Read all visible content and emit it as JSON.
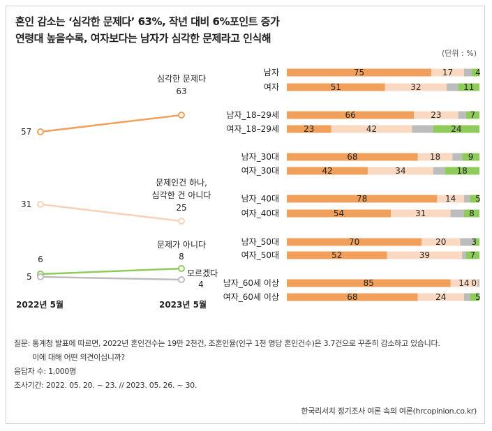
{
  "title_line1": "혼인 감소는 ‘심각한 문제다’ 63%, 작년 대비 6%포인트 증가",
  "title_line2": "연령대 높을수록, 여자보다는 남자가 심각한 문제라고 인식해",
  "unit": "(단위 : %)",
  "chart_data": [
    {
      "type": "line",
      "x": [
        "2022년 5월",
        "2023년 5월"
      ],
      "series": [
        {
          "name": "심각한 문제다",
          "values": [
            57,
            63
          ],
          "color": "#f0a05a"
        },
        {
          "name": "문제인건 하나, 심각한 건 아니다",
          "values": [
            31,
            25
          ],
          "color": "#f7d2b8"
        },
        {
          "name": "문제가 아니다",
          "values": [
            6,
            8
          ],
          "color": "#8fcb5a"
        },
        {
          "name": "모르겠다",
          "values": [
            5,
            4
          ],
          "color": "#bcbcbc"
        }
      ],
      "labels": {
        "serious": "심각한 문제다",
        "not_serious_1": "문제인건 하나,",
        "not_serious_2": "심각한 건 아니다",
        "not_problem": "문제가 아니다",
        "dont_know": "모르겠다"
      }
    },
    {
      "type": "bar",
      "stacked": true,
      "orientation": "horizontal",
      "series_names": [
        "심각한 문제다",
        "문제인건 하나, 심각한 건 아니다",
        "모르겠다",
        "문제가 아니다"
      ],
      "colors": [
        "#f0a05a",
        "#f9d9c2",
        "#bcbcbc",
        "#8fcb5a"
      ],
      "rows": [
        {
          "label": "남자",
          "values": [
            75,
            17,
            4,
            4
          ],
          "labels": [
            "75",
            "17",
            "",
            "4"
          ]
        },
        {
          "label": "여자",
          "values": [
            51,
            32,
            6,
            11
          ],
          "labels": [
            "51",
            "32",
            "",
            "11"
          ]
        },
        {
          "label": "남자_18–29세",
          "values": [
            66,
            23,
            4,
            7
          ],
          "labels": [
            "66",
            "23",
            "",
            "7"
          ]
        },
        {
          "label": "여자_18–29세",
          "values": [
            23,
            42,
            11,
            24
          ],
          "labels": [
            "23",
            "42",
            "",
            "24"
          ]
        },
        {
          "label": "남자_30대",
          "values": [
            68,
            18,
            5,
            9
          ],
          "labels": [
            "68",
            "18",
            "",
            "9"
          ]
        },
        {
          "label": "여자_30대",
          "values": [
            42,
            34,
            6,
            18
          ],
          "labels": [
            "42",
            "34",
            "",
            "18"
          ]
        },
        {
          "label": "남자_40대",
          "values": [
            78,
            14,
            3,
            5
          ],
          "labels": [
            "78",
            "14",
            "",
            "5"
          ]
        },
        {
          "label": "여자_40대",
          "values": [
            54,
            31,
            7,
            8
          ],
          "labels": [
            "54",
            "31",
            "",
            "8"
          ]
        },
        {
          "label": "남자_50대",
          "values": [
            70,
            20,
            7,
            3
          ],
          "labels": [
            "70",
            "20",
            "",
            "3"
          ]
        },
        {
          "label": "여자_50대",
          "values": [
            52,
            39,
            2,
            7
          ],
          "labels": [
            "52",
            "39",
            "",
            "7"
          ]
        },
        {
          "label": "남자_60세 이상",
          "values": [
            85,
            14,
            1,
            0
          ],
          "labels": [
            "85",
            "14",
            "",
            "0"
          ]
        },
        {
          "label": "여자_60세 이상",
          "values": [
            68,
            24,
            3,
            5
          ],
          "labels": [
            "68",
            "24",
            "",
            "5"
          ]
        }
      ]
    }
  ],
  "notes": {
    "question": "질문: 통계청 발표에 따르면, 2022년 혼인건수는 19만 2천건, 조혼인율(인구 1천 명당 혼인건수)은 3.7건으로 꾸준히 감소하고 있습니다.",
    "question2": "이에 대해 어떤 의견이십니까?",
    "respondents": "응답자 수: 1,000명",
    "period": "조사기간: 2022. 05. 20. ~ 23.  // 2023. 05. 26. ~ 30."
  },
  "source": "한국리서치 정기조사 여론 속의 여론(hrcopinion.co.kr)"
}
